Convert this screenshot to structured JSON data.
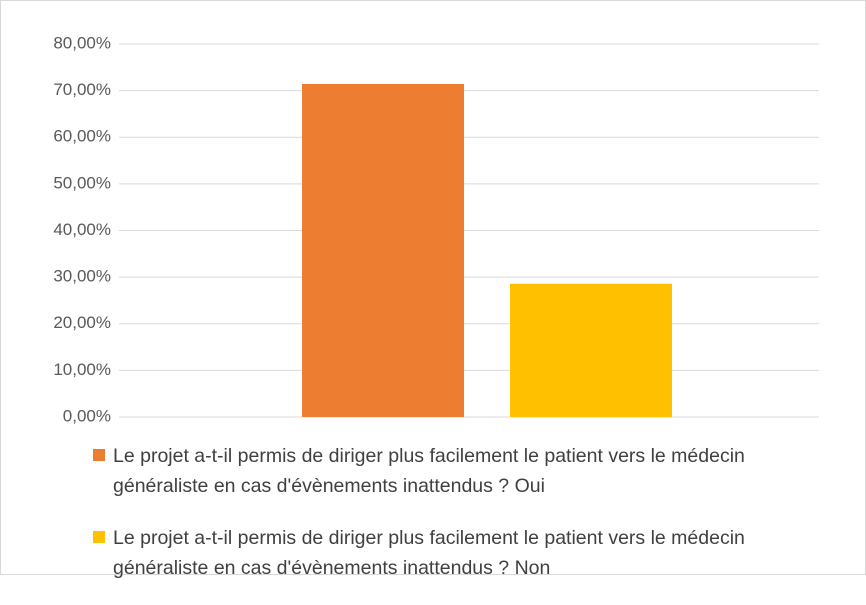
{
  "chart_data": {
    "type": "bar",
    "categories": [
      null
    ],
    "series": [
      {
        "name": "Le projet a-t-il permis de diriger plus facilement le patient vers le médecin généraliste en cas d'évènements inattendus ? Oui",
        "color": "#ed7d31",
        "values": [
          71.43
        ]
      },
      {
        "name": "Le projet a-t-il permis de diriger plus facilement le patient vers le médecin généraliste en cas d'évènements inattendus ? Non",
        "color": "#ffc000",
        "values": [
          28.57
        ]
      }
    ],
    "ylim": [
      0,
      80
    ],
    "yticks": [
      {
        "value": 0,
        "label": "0,00%"
      },
      {
        "value": 10,
        "label": "10,00%"
      },
      {
        "value": 20,
        "label": "20,00%"
      },
      {
        "value": 30,
        "label": "30,00%"
      },
      {
        "value": 40,
        "label": "40,00%"
      },
      {
        "value": 50,
        "label": "50,00%"
      },
      {
        "value": 60,
        "label": "60,00%"
      },
      {
        "value": 70,
        "label": "70,00%"
      },
      {
        "value": 80,
        "label": "80,00%"
      }
    ],
    "grid": true,
    "legend": "bottom"
  }
}
